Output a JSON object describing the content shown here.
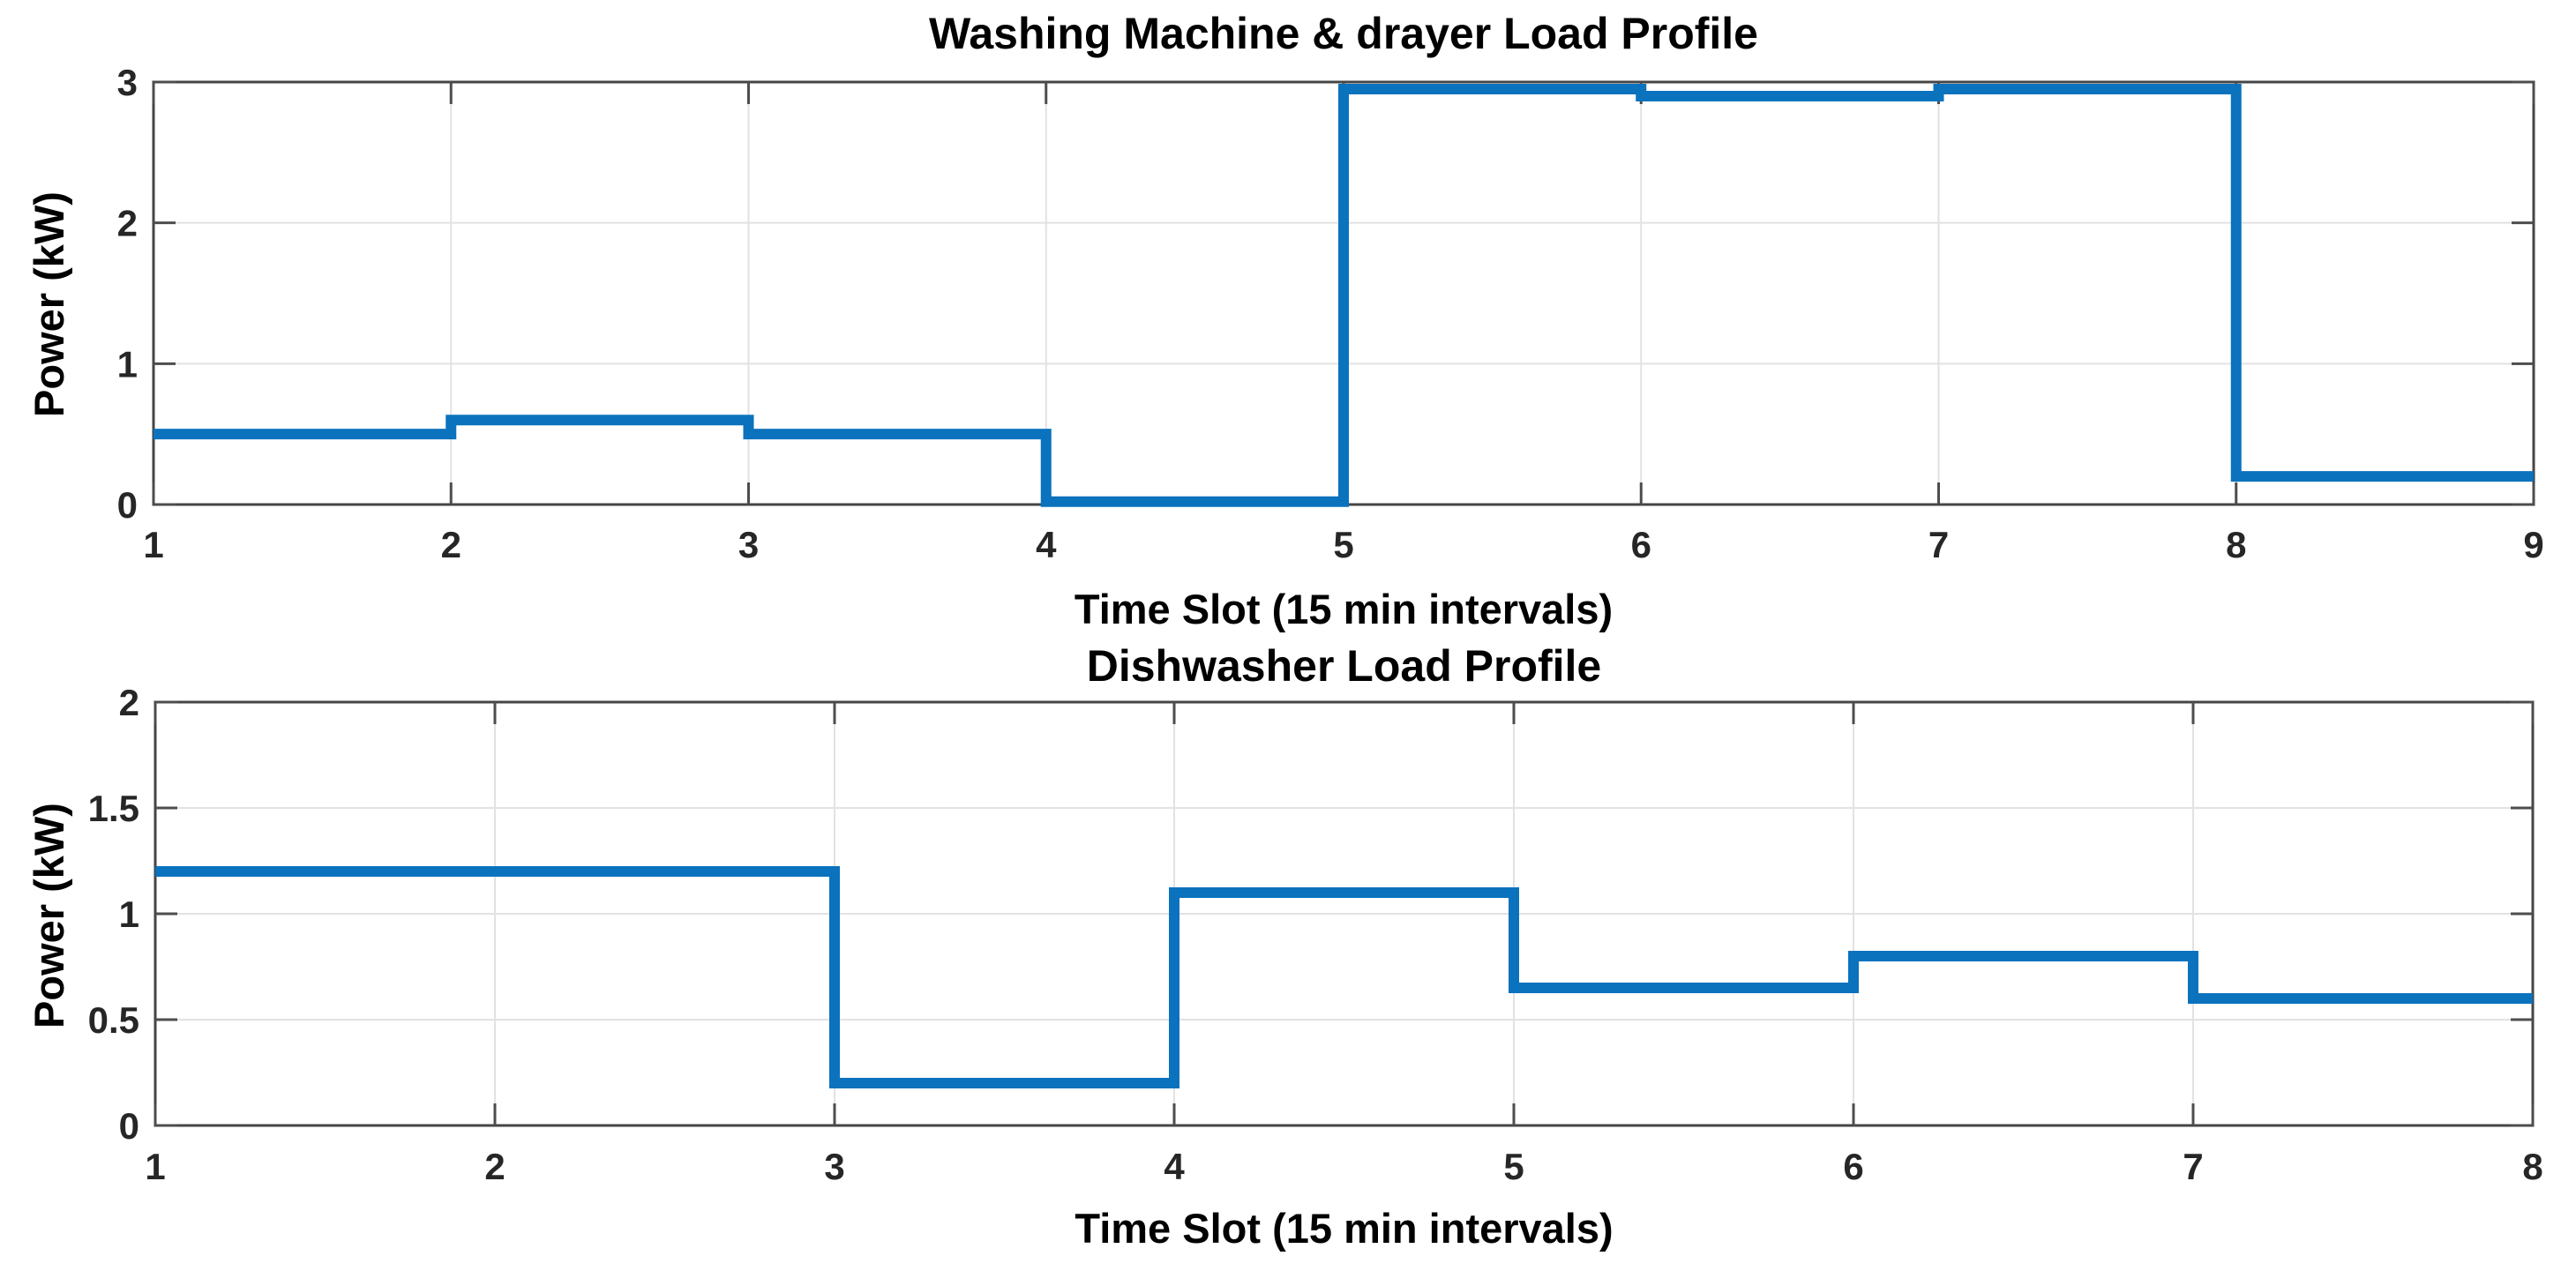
{
  "figure": {
    "background": "#ffffff"
  },
  "styles": {
    "axis_color": "#454545",
    "tick_color": "#4d4d4d",
    "grid_color": "#e2e2e2",
    "text_color": "#000000",
    "tick_text_color": "#262626",
    "accent_blue": "#0b72bd"
  },
  "chart_data": [
    {
      "type": "line",
      "line_style": "stairs",
      "title": "Washing Machine & drayer Load Profile",
      "xlabel": "Time Slot (15 min intervals)",
      "ylabel": "Power (kW)",
      "x_edges": [
        1,
        2,
        3,
        4,
        5,
        6,
        7,
        8,
        9
      ],
      "values": [
        0.5,
        0.6,
        0.5,
        0.02,
        2.95,
        2.9,
        2.95,
        0.2
      ],
      "xlim": [
        1,
        9
      ],
      "ylim": [
        0,
        3
      ],
      "xticks": [
        1,
        2,
        3,
        4,
        5,
        6,
        7,
        8,
        9
      ],
      "xtick_labels": [
        "1",
        "2",
        "3",
        "4",
        "5",
        "6",
        "7",
        "8",
        "9"
      ],
      "yticks": [
        0,
        1,
        2,
        3
      ],
      "ytick_labels": [
        "0",
        "1",
        "2",
        "3"
      ],
      "grid": true,
      "legend": "none",
      "line_color": "#0b72bd",
      "line_width": 12
    },
    {
      "type": "line",
      "line_style": "stairs",
      "title": "Dishwasher Load Profile",
      "xlabel": "Time Slot (15 min intervals)",
      "ylabel": "Power (kW)",
      "x_edges": [
        1,
        2,
        3,
        4,
        5,
        6,
        7,
        8
      ],
      "values": [
        1.2,
        1.2,
        0.2,
        1.1,
        0.65,
        0.8,
        0.6
      ],
      "xlim": [
        1,
        8
      ],
      "ylim": [
        0,
        2
      ],
      "xticks": [
        1,
        2,
        3,
        4,
        5,
        6,
        7,
        8
      ],
      "xtick_labels": [
        "1",
        "2",
        "3",
        "4",
        "5",
        "6",
        "7",
        "8"
      ],
      "yticks": [
        0,
        0.5,
        1,
        1.5,
        2
      ],
      "ytick_labels": [
        "0",
        "0.5",
        "1",
        "1.5",
        "2"
      ],
      "grid": true,
      "legend": "none",
      "line_color": "#0b72bd",
      "line_width": 12
    }
  ]
}
